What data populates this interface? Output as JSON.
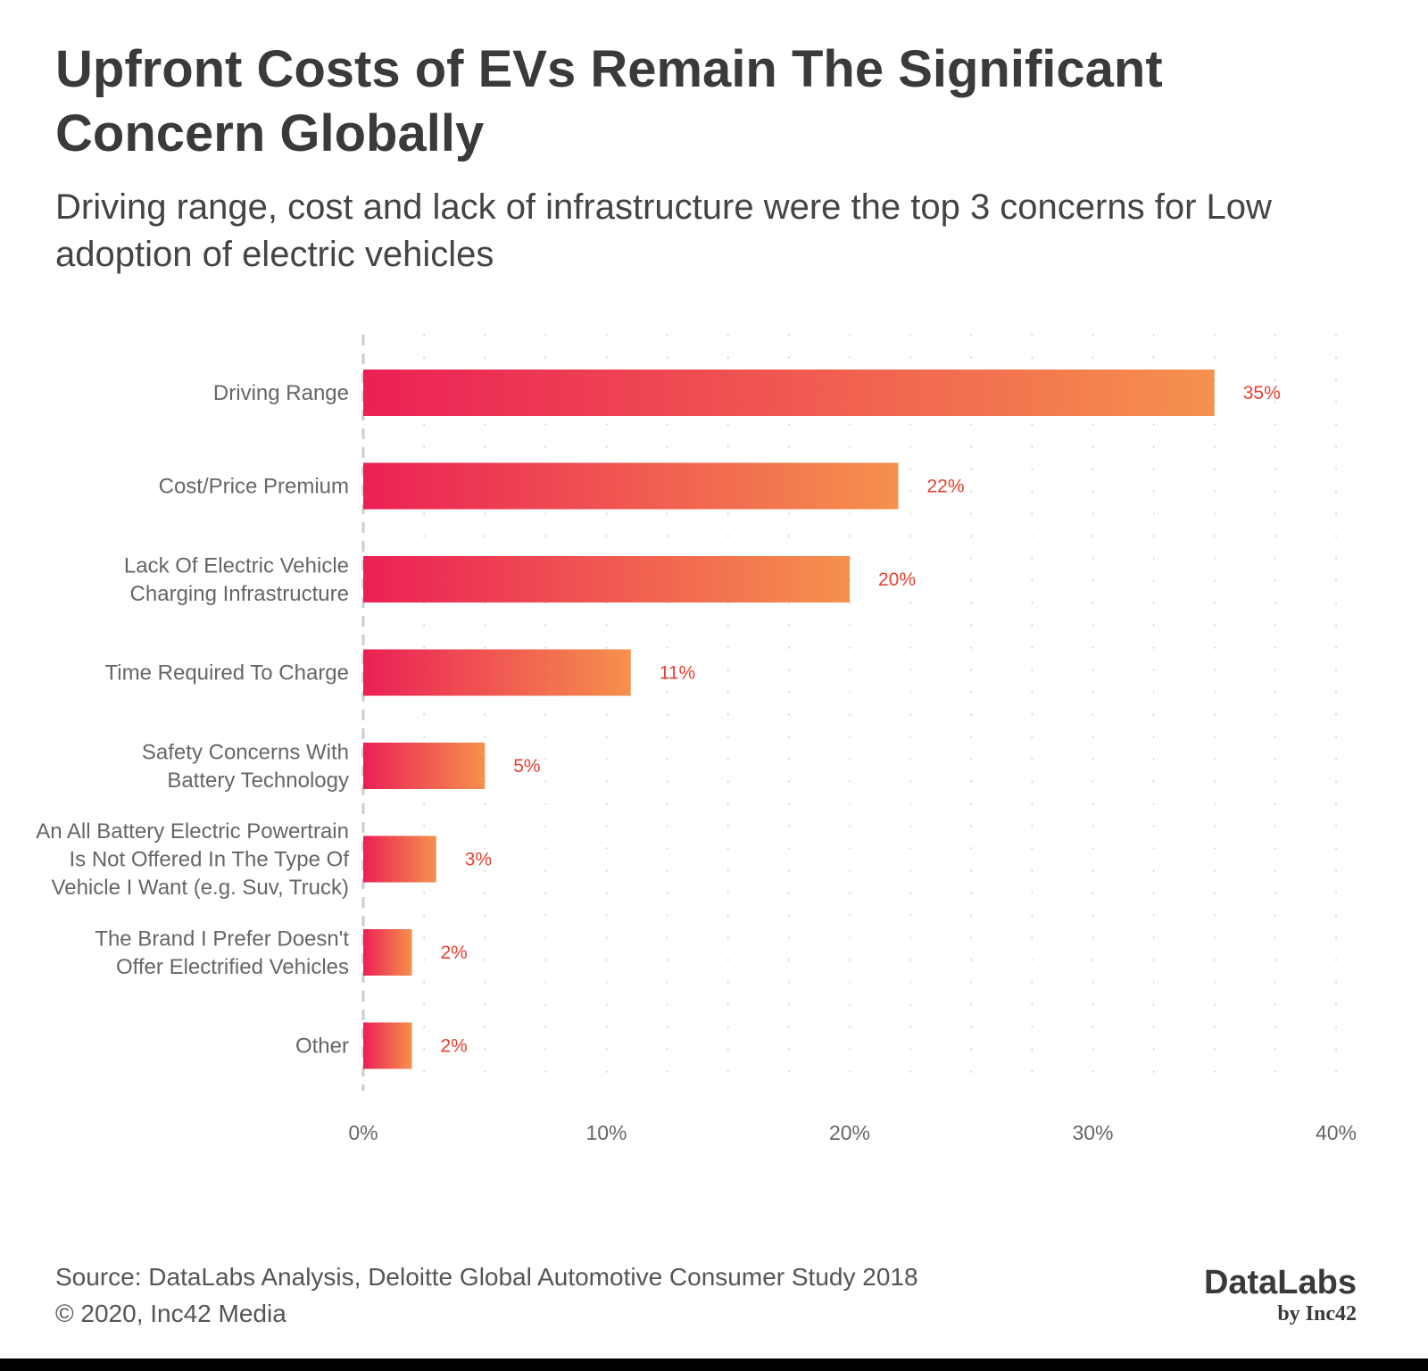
{
  "header": {
    "title": "Upfront Costs of EVs Remain The Significant Concern Globally",
    "subtitle": "Driving range, cost and lack of infrastructure were the top 3 concerns for Low adoption of electric vehicles"
  },
  "chart_data": {
    "type": "bar",
    "orientation": "horizontal",
    "categories": [
      "Driving Range",
      "Cost/Price Premium",
      "Lack Of Electric Vehicle Charging Infrastructure",
      "Time Required To Charge",
      "Safety Concerns With Battery Technology",
      "An All Battery Electric Powertrain Is Not Offered In The Type Of Vehicle I Want (e.g. Suv, Truck)",
      "The Brand I Prefer Doesn't Offer Electrified Vehicles",
      "Other"
    ],
    "category_lines": [
      [
        "Driving Range"
      ],
      [
        "Cost/Price Premium"
      ],
      [
        "Lack Of Electric Vehicle",
        "Charging Infrastructure"
      ],
      [
        "Time Required To Charge"
      ],
      [
        "Safety Concerns With",
        "Battery Technology"
      ],
      [
        "An All Battery Electric Powertrain",
        "Is Not Offered In The Type Of",
        "Vehicle I Want (e.g. Suv, Truck)"
      ],
      [
        "The Brand I Prefer Doesn't",
        "Offer Electrified Vehicles"
      ],
      [
        "Other"
      ]
    ],
    "values": [
      35,
      22,
      20,
      11,
      5,
      3,
      2,
      2
    ],
    "value_labels": [
      "35%",
      "22%",
      "20%",
      "11%",
      "5%",
      "3%",
      "2%",
      "2%"
    ],
    "xlim": [
      0,
      40
    ],
    "xticks": [
      0,
      10,
      20,
      30,
      40
    ],
    "xtick_labels": [
      "0%",
      "10%",
      "20%",
      "30%",
      "40%"
    ],
    "grid": "dotted vertical",
    "colors": {
      "bar_start": "#eb2055",
      "bar_end": "#f5914d",
      "value_label": "#e8402f",
      "axis_text": "#666666"
    }
  },
  "footer": {
    "source": "Source: DataLabs Analysis, Deloitte Global Automotive Consumer Study 2018",
    "copyright": "© 2020, Inc42 Media",
    "logo_main": "DataLabs",
    "logo_sub": "by Inc42"
  }
}
